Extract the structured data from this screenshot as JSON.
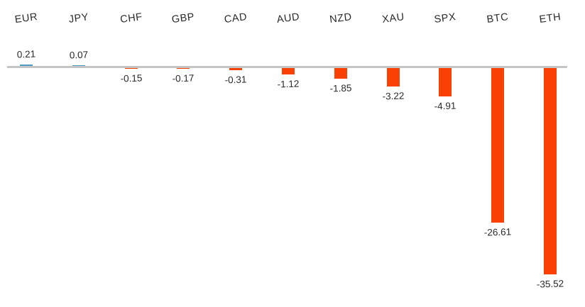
{
  "chart_data": {
    "type": "bar",
    "title": "",
    "xlabel": "",
    "ylabel": "",
    "grid": false,
    "legend": null,
    "ylim": [
      -40,
      5
    ],
    "categories": [
      "EUR",
      "JPY",
      "CHF",
      "GBP",
      "CAD",
      "AUD",
      "NZD",
      "XAU",
      "SPX",
      "BTC",
      "ETH"
    ],
    "values": [
      0.21,
      0.07,
      -0.15,
      -0.17,
      -0.31,
      -1.12,
      -1.85,
      -3.22,
      -4.91,
      -26.61,
      -35.52
    ],
    "value_labels": [
      "0.21",
      "0.07",
      "-0.15",
      "-0.17",
      "-0.31",
      "-1.12",
      "-1.85",
      "-3.22",
      "-4.91",
      "-26.61",
      "-35.52"
    ],
    "positive_color": "#4E9CC4",
    "negative_color": "#FA4103",
    "axis_line_color": "#C5C5C5",
    "label_color": "#2A2A2A"
  }
}
